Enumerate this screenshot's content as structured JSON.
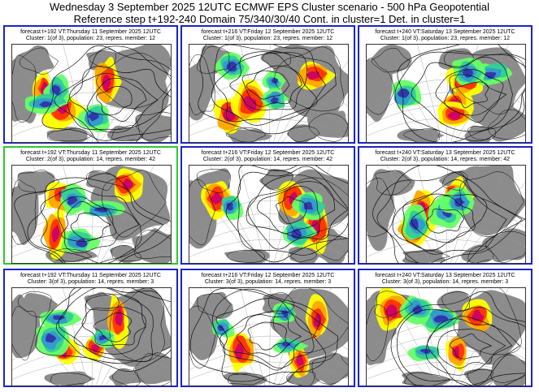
{
  "header": {
    "title": "Wednesday 3 September 2025 12UTC ECMWF EPS Cluster scenario - 500 hPa Geopotential",
    "subtitle": "Reference step t+192-240 Domain 75/340/30/40 Cont. in cluster=1 Det. in cluster=1"
  },
  "colors": {
    "frame": "#1a22c8",
    "highlight_frame": "#2ec72e",
    "land": "#8c8c8c",
    "sea": "#ffffff",
    "positive_anomaly": [
      "#ffff00",
      "#ffa500",
      "#ff3300",
      "#cc0066"
    ],
    "negative_anomaly": [
      "#66ff66",
      "#33cc99",
      "#3399cc",
      "#3333aa"
    ]
  },
  "panels": [
    {
      "row": 1,
      "col": 1,
      "highlight": false,
      "line1": "forecast t+192 VT:Thursday 11 September 2025 12UTC",
      "line2": "Cluster: 1(of 3), population: 23, repres. member: 12"
    },
    {
      "row": 1,
      "col": 2,
      "highlight": false,
      "line1": "forecast t+216 VT:Friday 12 September 2025 12UTC",
      "line2": "Cluster: 1(of 3), population: 23, repres. member: 12"
    },
    {
      "row": 1,
      "col": 3,
      "highlight": false,
      "line1": "forecast t+240 VT:Saturday 13 September 2025 12UTC",
      "line2": "Cluster: 1(of 3), population: 23, repres. member: 12"
    },
    {
      "row": 2,
      "col": 1,
      "highlight": true,
      "line1": "forecast t+192 VT:Thursday 11 September 2025 12UTC",
      "line2": "Cluster: 2(of 3), population: 14, repres. member: 42"
    },
    {
      "row": 2,
      "col": 2,
      "highlight": false,
      "line1": "forecast t+216 VT:Friday 12 September 2025 12UTC",
      "line2": "Cluster: 2(of 3), population: 14, repres. member: 42"
    },
    {
      "row": 2,
      "col": 3,
      "highlight": false,
      "line1": "forecast t+240 VT:Saturday 13 September 2025 12UTC",
      "line2": "Cluster: 2(of 3), population: 14, repres. member: 42"
    },
    {
      "row": 3,
      "col": 1,
      "highlight": false,
      "line1": "forecast t+192 VT:Thursday 11 September 2025 12UTC",
      "line2": "Cluster: 3(of 3), population: 14, repres. member: 3"
    },
    {
      "row": 3,
      "col": 2,
      "highlight": false,
      "line1": "forecast t+216 VT:Friday 12 September 2025 12UTC",
      "line2": "Cluster: 3(of 3), population: 14, repres. member: 3"
    },
    {
      "row": 3,
      "col": 3,
      "highlight": false,
      "line1": "forecast t+240 VT:Saturday 13 September 2025 12UTC",
      "line2": "Cluster: 3(of 3), population: 14, repres. member: 3"
    }
  ]
}
